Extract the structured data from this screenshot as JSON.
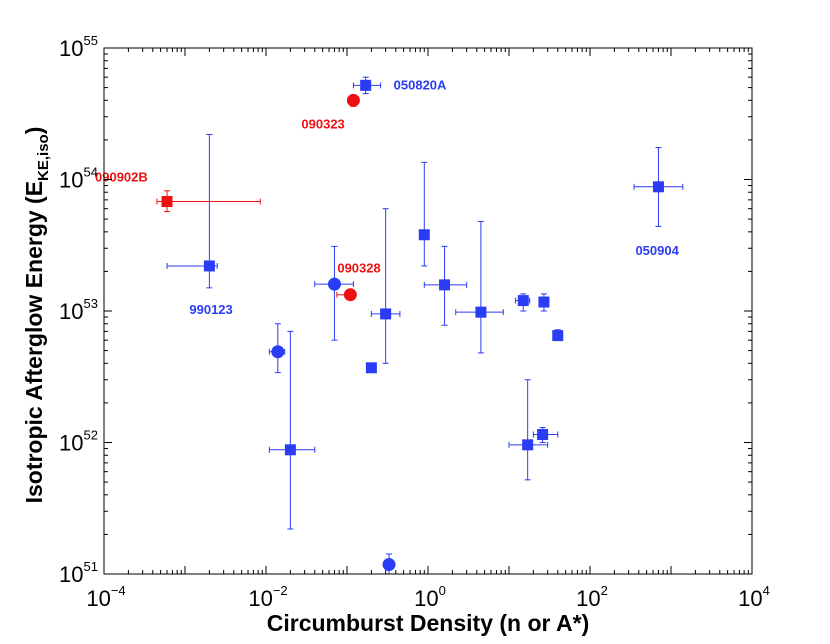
{
  "chart_data": {
    "type": "scatter",
    "title": "",
    "xlabel": "Circumburst Density (n or A*)",
    "ylabel_main": "Isotropic Afterglow Energy (E",
    "ylabel_sub": "KE,iso",
    "ylabel_end": ")",
    "xscale": "log",
    "yscale": "log",
    "xlim": [
      0.0001,
      10000
    ],
    "ylim": [
      1e+51,
      1e+55
    ],
    "x_ticks": [
      {
        "base": "10",
        "exp": "−4",
        "value": 0.0001
      },
      {
        "base": "10",
        "exp": "−2",
        "value": 0.01
      },
      {
        "base": "10",
        "exp": "0",
        "value": 1
      },
      {
        "base": "10",
        "exp": "2",
        "value": 100
      },
      {
        "base": "10",
        "exp": "4",
        "value": 10000
      }
    ],
    "y_ticks": [
      {
        "base": "10",
        "exp": "51",
        "value": 1e+51
      },
      {
        "base": "10",
        "exp": "52",
        "value": 1e+52
      },
      {
        "base": "10",
        "exp": "53",
        "value": 1e+53
      },
      {
        "base": "10",
        "exp": "54",
        "value": 1e+54
      },
      {
        "base": "10",
        "exp": "55",
        "value": 1e+55
      }
    ],
    "colors": {
      "blue": "#2a3df5",
      "red": "#ee1111",
      "axis": "#000000"
    },
    "points": [
      {
        "x": 0.17,
        "y": 5.2e+54,
        "xerr": [
          0.12,
          0.26
        ],
        "yerr": [
          4.5e+54,
          6e+54
        ],
        "marker": "square",
        "color": "blue",
        "label": "050820A"
      },
      {
        "x": 0.12,
        "y": 4e+54,
        "xerr": null,
        "yerr": [
          3.6e+54,
          4.3e+54
        ],
        "marker": "circle",
        "color": "red",
        "label": "090323"
      },
      {
        "x": 0.0006,
        "y": 6.8e+53,
        "xerr": [
          0.00045,
          0.0085
        ],
        "yerr": [
          5.7e+53,
          8.2e+53
        ],
        "marker": "square",
        "color": "red",
        "label": "090902B"
      },
      {
        "x": 0.002,
        "y": 2.2e+53,
        "xerr": [
          0.0006,
          0.0025
        ],
        "yerr": [
          1.5e+53,
          2.2e+54
        ],
        "marker": "square",
        "color": "blue",
        "label": "990123"
      },
      {
        "x": 700,
        "y": 8.8e+53,
        "xerr": [
          350,
          1400
        ],
        "yerr": [
          4.4e+53,
          1.75e+54
        ],
        "marker": "square",
        "color": "blue",
        "label": "050904"
      },
      {
        "x": 0.11,
        "y": 1.33e+53,
        "xerr": [
          0.075,
          0.125
        ],
        "yerr": null,
        "marker": "circle",
        "color": "red",
        "label": "090328"
      },
      {
        "x": 0.07,
        "y": 1.6e+53,
        "xerr": [
          0.04,
          0.12
        ],
        "yerr": [
          6e+52,
          3.1e+53
        ],
        "marker": "circle",
        "color": "blue"
      },
      {
        "x": 0.3,
        "y": 9.5e+52,
        "xerr": [
          0.2,
          0.45
        ],
        "yerr": [
          4e+52,
          6e+53
        ],
        "marker": "square",
        "color": "blue"
      },
      {
        "x": 0.9,
        "y": 3.8e+53,
        "xerr": null,
        "yerr": [
          2.2e+53,
          1.35e+54
        ],
        "marker": "square",
        "color": "blue"
      },
      {
        "x": 1.6,
        "y": 1.58e+53,
        "xerr": [
          0.9,
          3.0
        ],
        "yerr": [
          7.8e+52,
          3.1e+53
        ],
        "marker": "square",
        "color": "blue"
      },
      {
        "x": 4.5,
        "y": 9.8e+52,
        "xerr": [
          2.2,
          8.5
        ],
        "yerr": [
          4.8e+52,
          4.8e+53
        ],
        "marker": "square",
        "color": "blue"
      },
      {
        "x": 15,
        "y": 1.2e+53,
        "xerr": [
          12,
          18
        ],
        "yerr": [
          1e+53,
          1.35e+53
        ],
        "marker": "square",
        "color": "blue"
      },
      {
        "x": 27,
        "y": 1.17e+53,
        "xerr": null,
        "yerr": [
          1e+53,
          1.35e+53
        ],
        "marker": "square",
        "color": "blue"
      },
      {
        "x": 40,
        "y": 6.5e+52,
        "xerr": null,
        "yerr": [
          6.1e+52,
          7.2e+52
        ],
        "marker": "square",
        "color": "blue"
      },
      {
        "x": 0.2,
        "y": 3.7e+52,
        "xerr": null,
        "yerr": null,
        "marker": "square",
        "color": "blue"
      },
      {
        "x": 0.014,
        "y": 4.9e+52,
        "xerr": [
          0.011,
          0.017
        ],
        "yerr": [
          3.4e+52,
          8e+52
        ],
        "marker": "circle",
        "color": "blue"
      },
      {
        "x": 0.02,
        "y": 8.8e+51,
        "xerr": [
          0.011,
          0.04
        ],
        "yerr": [
          2.2e+51,
          7e+52
        ],
        "marker": "square",
        "color": "blue"
      },
      {
        "x": 17,
        "y": 9.6e+51,
        "xerr": [
          10,
          30
        ],
        "yerr": [
          5.2e+51,
          3e+52
        ],
        "marker": "square",
        "color": "blue"
      },
      {
        "x": 26,
        "y": 1.15e+52,
        "xerr": [
          20,
          40
        ],
        "yerr": [
          1e+52,
          1.3e+52
        ],
        "marker": "square",
        "color": "blue"
      },
      {
        "x": 0.33,
        "y": 1.18e+51,
        "xerr": null,
        "yerr": [
          1e+51,
          1.42e+51
        ],
        "marker": "circle",
        "color": "blue"
      }
    ]
  }
}
